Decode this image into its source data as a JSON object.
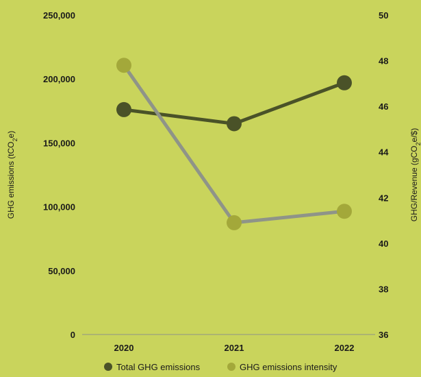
{
  "chart_data": {
    "type": "line",
    "categories": [
      "2020",
      "2021",
      "2022"
    ],
    "series": [
      {
        "name": "Total GHG emissions",
        "axis": "left",
        "color": "#4a5228",
        "values": [
          176000,
          165000,
          197000
        ]
      },
      {
        "name": "GHG emissions intensity",
        "axis": "right",
        "color": "#a3a83a",
        "line_color": "#8f9488",
        "values": [
          47.8,
          40.9,
          41.4
        ]
      }
    ],
    "yleft": {
      "label": "GHG emissions (tCO2e)",
      "label_parts": [
        "GHG emissions (tCO",
        "2",
        "e)"
      ],
      "ylim": [
        0,
        250000
      ],
      "ticks": [
        "0",
        "50,000",
        "100,000",
        "150,000",
        "200,000",
        "250,000"
      ]
    },
    "yright": {
      "label": "GHG/Revenue (gCO2e/$)",
      "label_parts": [
        "GHG/Revenue (gCO",
        "2",
        "e/$)"
      ],
      "ylim": [
        36,
        50
      ],
      "ticks": [
        "36",
        "38",
        "40",
        "42",
        "44",
        "46",
        "48",
        "50"
      ]
    },
    "grid": false,
    "legend_position": "bottom"
  }
}
